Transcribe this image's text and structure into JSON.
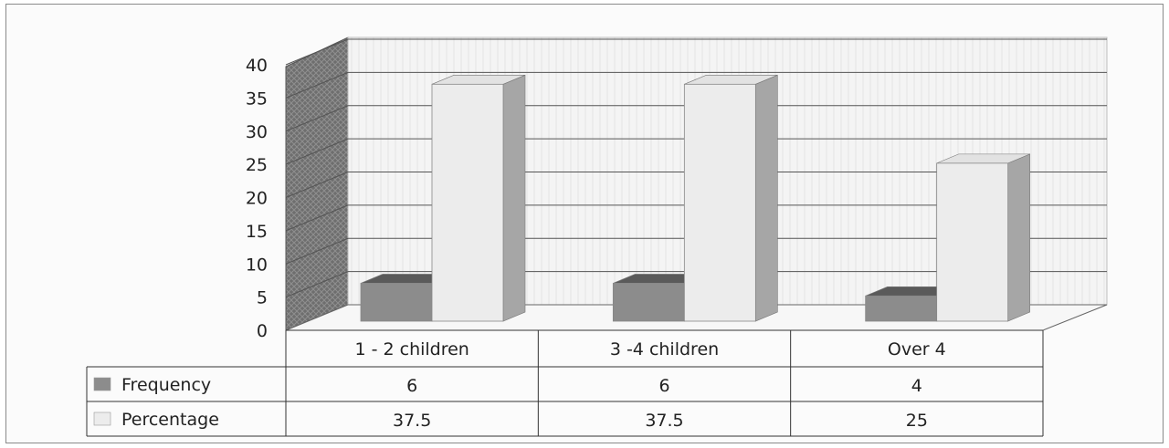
{
  "chart_data": {
    "type": "bar",
    "categories": [
      "1 - 2 children",
      "3 -4 children",
      "Over 4"
    ],
    "series": [
      {
        "name": "Frequency",
        "values": [
          6,
          6,
          4
        ],
        "labels": [
          "6",
          "6",
          "4"
        ],
        "color": "#8c8c8c"
      },
      {
        "name": "Percentage",
        "values": [
          37.5,
          37.5,
          25
        ],
        "labels": [
          "37.5",
          "37.5",
          "25"
        ],
        "color": "#ececec"
      }
    ],
    "ylim": [
      0,
      40
    ],
    "yticks": [
      0,
      5,
      10,
      15,
      20,
      25,
      30,
      35,
      40
    ],
    "grid": true,
    "three_d": true,
    "data_table": true
  }
}
